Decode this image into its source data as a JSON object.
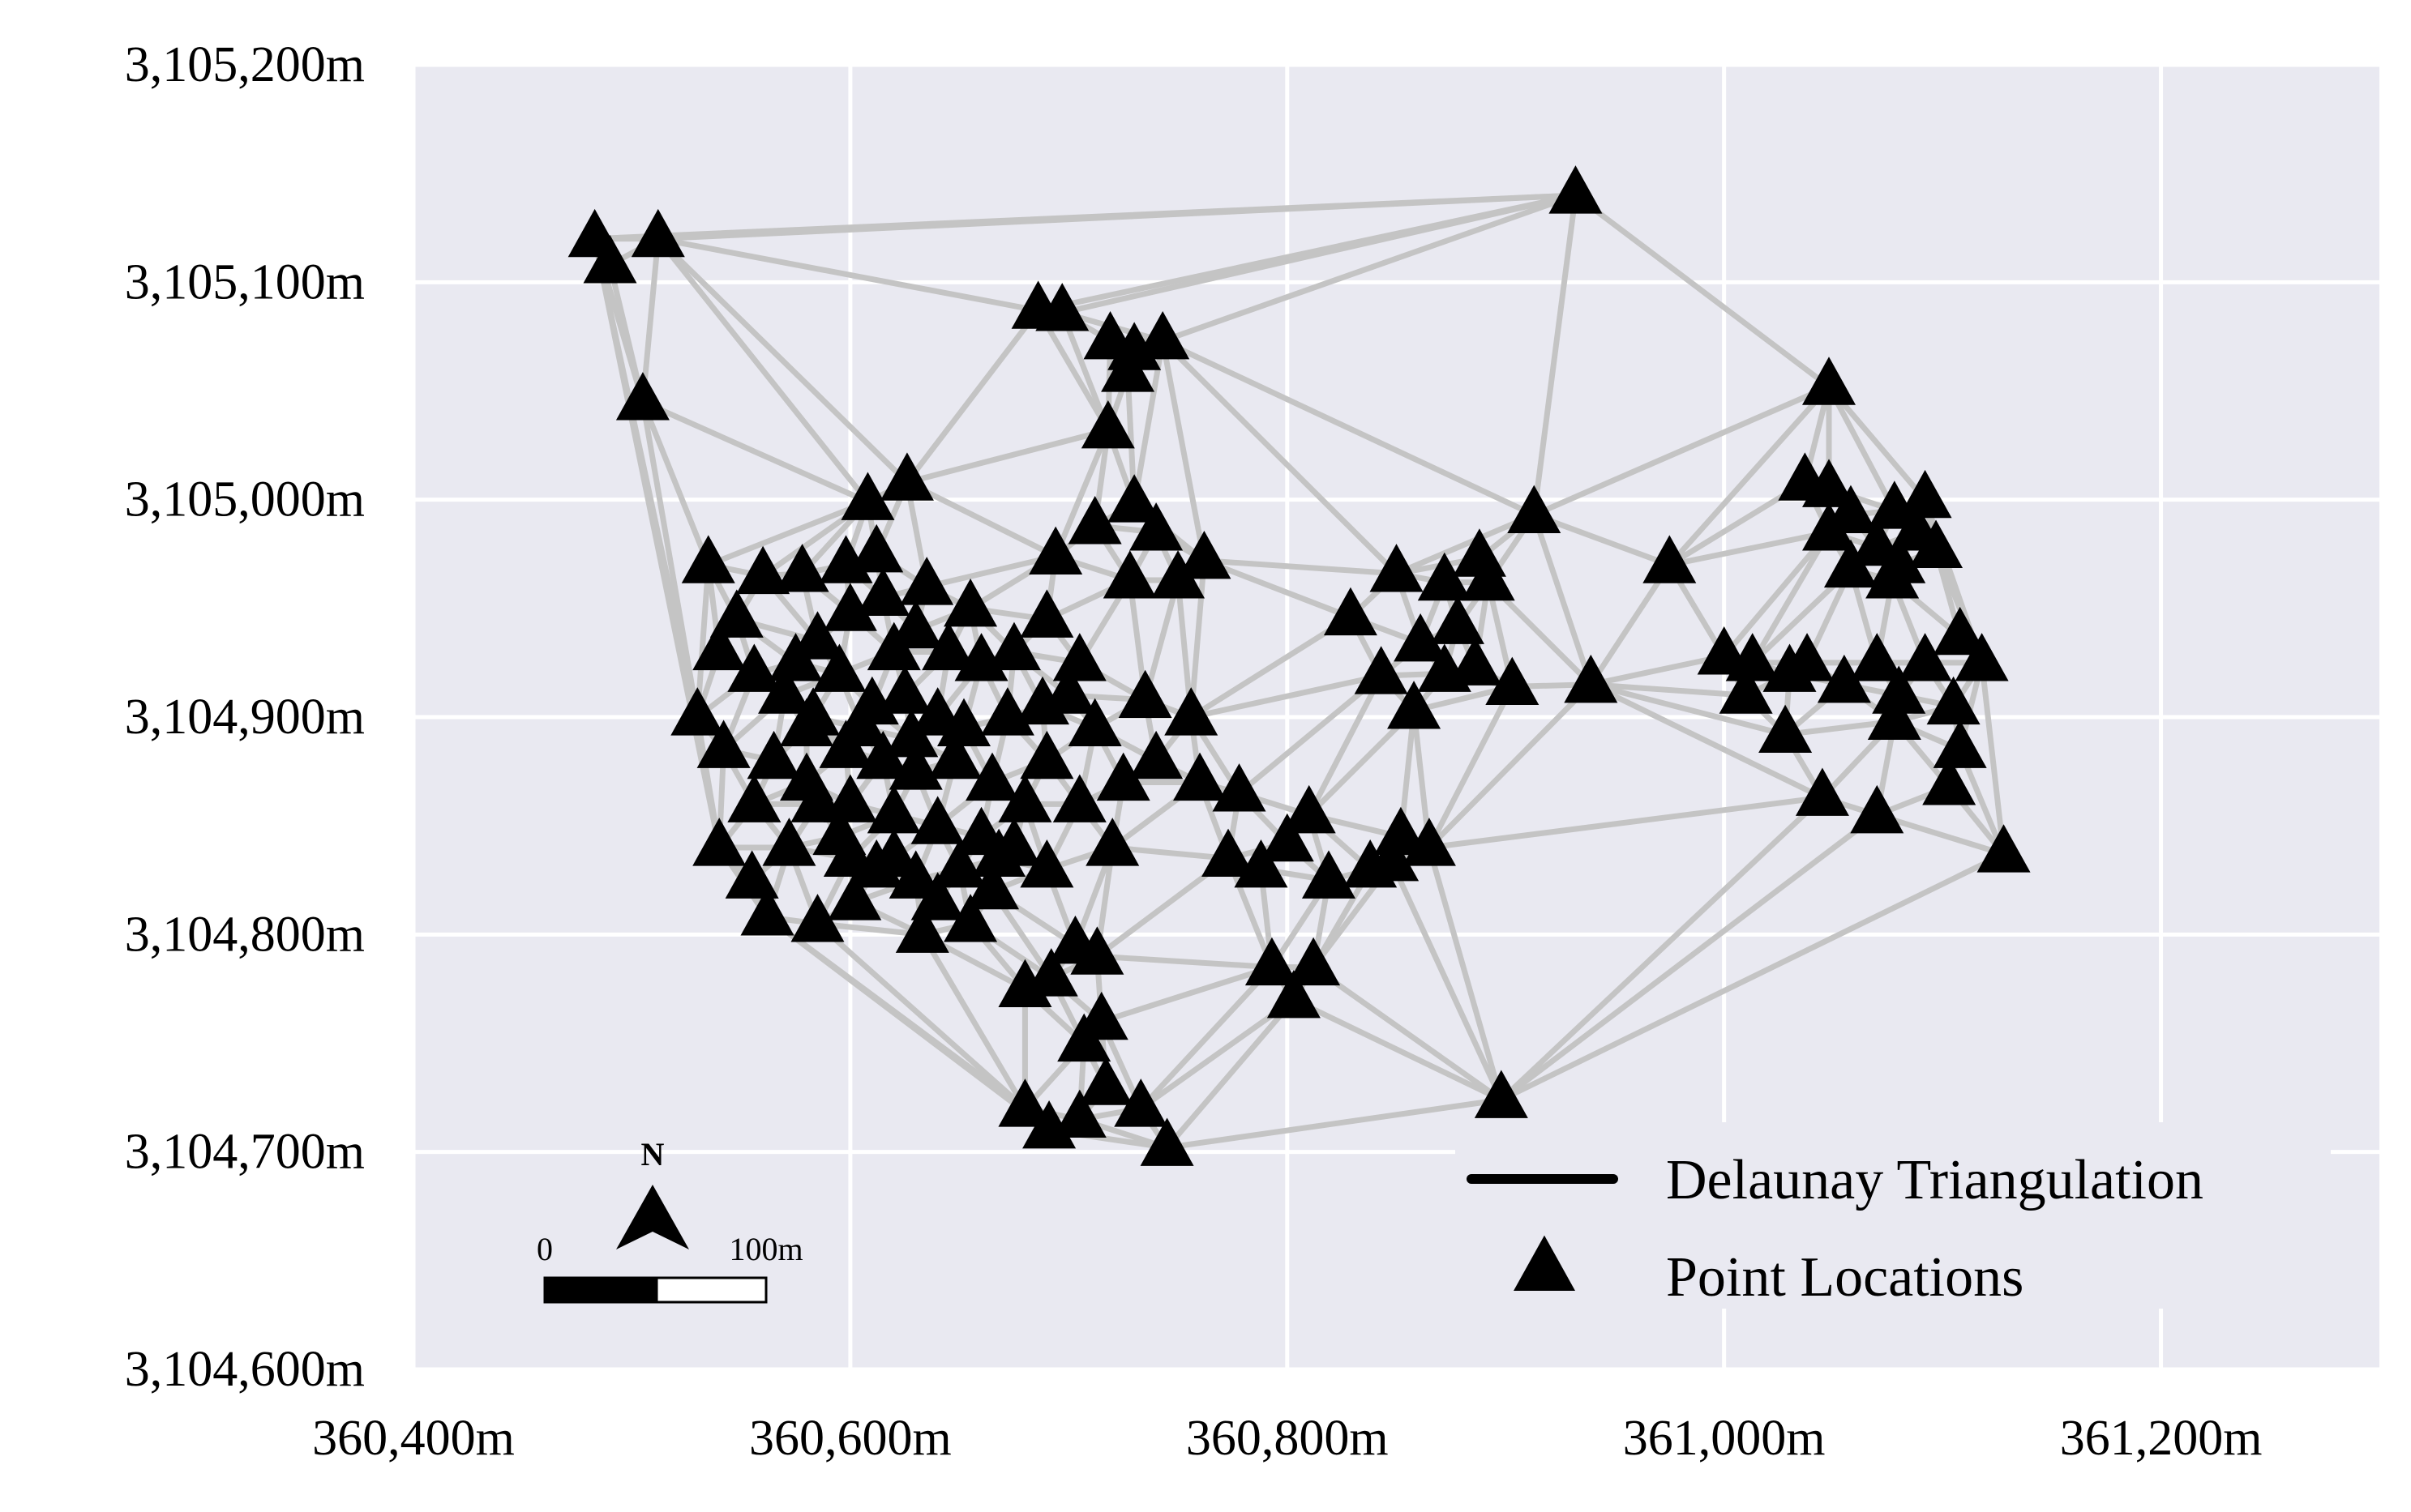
{
  "chart_data": {
    "type": "scatter",
    "x_ticks": [
      "360,400m",
      "360,600m",
      "360,800m",
      "361,000m",
      "361,200m"
    ],
    "y_ticks": [
      "3,104,600m",
      "3,104,700m",
      "3,104,800m",
      "3,104,900m",
      "3,105,000m",
      "3,105,100m",
      "3,105,200m"
    ],
    "x_tick_values": [
      360400,
      360600,
      360800,
      361000,
      361200
    ],
    "y_tick_values": [
      3104600,
      3104700,
      3104800,
      3104900,
      3105000,
      3105100,
      3105200
    ],
    "xlim": [
      360400,
      361300
    ],
    "ylim": [
      3104600,
      3105200
    ],
    "grid": true,
    "background": "#e9e9f1",
    "grid_color": "#ffffff",
    "edge_color": "#c4c4c4",
    "marker_color": "#000000",
    "legend": {
      "placement": "bottom-right",
      "entries": [
        {
          "label": "Delaunay Triangulation",
          "symbol": "line"
        },
        {
          "label": "Point Locations",
          "symbol": "triangle"
        }
      ]
    },
    "scale_bar": {
      "start_label": "0",
      "end_label": "100m",
      "length_m": 100
    },
    "north_arrow": {
      "label": "N"
    },
    "series": [
      {
        "symbol": "triangle",
        "points": [
          [
            360483,
            3105120
          ],
          [
            360490,
            3105108
          ],
          [
            360512,
            3105120
          ],
          [
            360505,
            3105045
          ],
          [
            360932,
            3105140
          ],
          [
            360686,
            3105087
          ],
          [
            360697,
            3105086
          ],
          [
            360719,
            3105073
          ],
          [
            360730,
            3105068
          ],
          [
            360743,
            3105073
          ],
          [
            360727,
            3105058
          ],
          [
            360718,
            3105032
          ],
          [
            361048,
            3105052
          ],
          [
            360608,
            3104999
          ],
          [
            360626,
            3105008
          ],
          [
            360730,
            3104998
          ],
          [
            360740,
            3104985
          ],
          [
            360712,
            3104988
          ],
          [
            360694,
            3104974
          ],
          [
            360728,
            3104963
          ],
          [
            360750,
            3104963
          ],
          [
            360762,
            3104972
          ],
          [
            360913,
            3104993
          ],
          [
            360888,
            3104973
          ],
          [
            360892,
            3104962
          ],
          [
            360850,
            3104966
          ],
          [
            360872,
            3104962
          ],
          [
            360829,
            3104946
          ],
          [
            360878,
            3104942
          ],
          [
            360861,
            3104934
          ],
          [
            360872,
            3104920
          ],
          [
            360886,
            3104923
          ],
          [
            360843,
            3104919
          ],
          [
            360903,
            3104914
          ],
          [
            360939,
            3104915
          ],
          [
            360858,
            3104903
          ],
          [
            361037,
            3105008
          ],
          [
            361048,
            3105005
          ],
          [
            361058,
            3104993
          ],
          [
            361048,
            3104985
          ],
          [
            361078,
            3104995
          ],
          [
            361092,
            3105000
          ],
          [
            361088,
            3104985
          ],
          [
            361070,
            3104978
          ],
          [
            361077,
            3104963
          ],
          [
            361058,
            3104968
          ],
          [
            361080,
            3104970
          ],
          [
            361097,
            3104977
          ],
          [
            360975,
            3104970
          ],
          [
            361000,
            3104928
          ],
          [
            361013,
            3104925
          ],
          [
            361010,
            3104910
          ],
          [
            361038,
            3104925
          ],
          [
            361030,
            3104920
          ],
          [
            361055,
            3104915
          ],
          [
            361070,
            3104925
          ],
          [
            361080,
            3104910
          ],
          [
            361092,
            3104925
          ],
          [
            361108,
            3104937
          ],
          [
            361118,
            3104925
          ],
          [
            361105,
            3104905
          ],
          [
            361078,
            3104898
          ],
          [
            361028,
            3104892
          ],
          [
            361108,
            3104885
          ],
          [
            361103,
            3104868
          ],
          [
            361045,
            3104863
          ],
          [
            361070,
            3104855
          ],
          [
            361128,
            3104837
          ],
          [
            360535,
            3104970
          ],
          [
            360560,
            3104965
          ],
          [
            360578,
            3104966
          ],
          [
            360598,
            3104970
          ],
          [
            360612,
            3104975
          ],
          [
            360540,
            3104930
          ],
          [
            360548,
            3104945
          ],
          [
            360556,
            3104920
          ],
          [
            360530,
            3104900
          ],
          [
            360542,
            3104885
          ],
          [
            360556,
            3104860
          ],
          [
            360540,
            3104840
          ],
          [
            360555,
            3104825
          ],
          [
            360562,
            3104808
          ],
          [
            360585,
            3104805
          ],
          [
            360602,
            3104815
          ],
          [
            360572,
            3104840
          ],
          [
            360585,
            3104860
          ],
          [
            360600,
            3104835
          ],
          [
            360620,
            3104835
          ],
          [
            360633,
            3104800
          ],
          [
            360640,
            3104815
          ],
          [
            360655,
            3104805
          ],
          [
            360665,
            3104820
          ],
          [
            360680,
            3104775
          ],
          [
            360692,
            3104780
          ],
          [
            360703,
            3104795
          ],
          [
            360713,
            3104790
          ],
          [
            360715,
            3104760
          ],
          [
            360707,
            3104750
          ],
          [
            360717,
            3104730
          ],
          [
            360733,
            3104720
          ],
          [
            360680,
            3104720
          ],
          [
            360691,
            3104710
          ],
          [
            360705,
            3104715
          ],
          [
            360745,
            3104702
          ],
          [
            360793,
            3104785
          ],
          [
            360803,
            3104770
          ],
          [
            360812,
            3104785
          ],
          [
            360819,
            3104825
          ],
          [
            360838,
            3104830
          ],
          [
            360848,
            3104833
          ],
          [
            360852,
            3104845
          ],
          [
            360865,
            3104840
          ],
          [
            360773,
            3104835
          ],
          [
            360788,
            3104830
          ],
          [
            360800,
            3104842
          ],
          [
            360810,
            3104855
          ],
          [
            360760,
            3104870
          ],
          [
            360778,
            3104865
          ],
          [
            360756,
            3104900
          ],
          [
            360735,
            3104908
          ],
          [
            360898,
            3104724
          ],
          [
            360700,
            3104910
          ],
          [
            360712,
            3104895
          ],
          [
            360690,
            3104880
          ],
          [
            360705,
            3104860
          ],
          [
            360720,
            3104840
          ],
          [
            360740,
            3104880
          ],
          [
            360725,
            3104870
          ],
          [
            360630,
            3104940
          ],
          [
            360645,
            3104930
          ],
          [
            360660,
            3104925
          ],
          [
            360675,
            3104930
          ],
          [
            360595,
            3104920
          ],
          [
            360610,
            3104905
          ],
          [
            360625,
            3104910
          ],
          [
            360640,
            3104900
          ],
          [
            360580,
            3104895
          ],
          [
            360598,
            3104885
          ],
          [
            360615,
            3104880
          ],
          [
            360630,
            3104875
          ],
          [
            360648,
            3104880
          ],
          [
            360665,
            3104870
          ],
          [
            360680,
            3104860
          ],
          [
            360600,
            3104860
          ],
          [
            360620,
            3104855
          ],
          [
            360640,
            3104850
          ],
          [
            360660,
            3104845
          ],
          [
            360675,
            3104840
          ],
          [
            360570,
            3104910
          ],
          [
            360585,
            3104935
          ],
          [
            360600,
            3104948
          ],
          [
            360615,
            3104955
          ],
          [
            360655,
            3104950
          ],
          [
            360635,
            3104960
          ],
          [
            360690,
            3104945
          ],
          [
            360705,
            3104925
          ],
          [
            360565,
            3104880
          ],
          [
            360580,
            3104870
          ],
          [
            360595,
            3104845
          ],
          [
            360612,
            3104830
          ],
          [
            360630,
            3104825
          ],
          [
            360650,
            3104830
          ],
          [
            360668,
            3104835
          ],
          [
            360690,
            3104830
          ],
          [
            360583,
            3104900
          ],
          [
            360605,
            3104895
          ],
          [
            360628,
            3104890
          ],
          [
            360652,
            3104895
          ],
          [
            360672,
            3104900
          ],
          [
            360688,
            3104905
          ],
          [
            360575,
            3104925
          ],
          [
            360620,
            3104930
          ]
        ]
      }
    ]
  }
}
